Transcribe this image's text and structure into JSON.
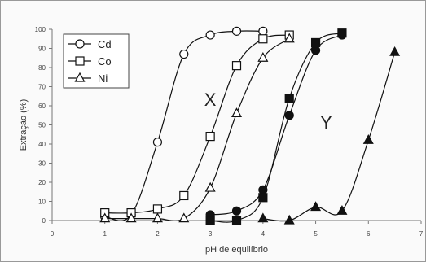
{
  "chart_data": {
    "type": "scatter",
    "xlabel": "pH de equilíbrio",
    "ylabel": "Extração (%)",
    "xlim": [
      0,
      7
    ],
    "ylim": [
      0,
      100
    ],
    "x_ticks": [
      0,
      1,
      2,
      3,
      4,
      5,
      6,
      7
    ],
    "y_ticks": [
      0,
      10,
      20,
      30,
      40,
      50,
      60,
      70,
      80,
      90,
      100
    ],
    "grid": false,
    "legend_position": "top-left",
    "annotations": [
      {
        "text": "X",
        "x": 3.0,
        "y": 60
      },
      {
        "text": "Y",
        "x": 5.2,
        "y": 48
      }
    ],
    "series": [
      {
        "name": "Cd",
        "group": "X",
        "marker": "circle",
        "fill": "open",
        "x": [
          1.0,
          1.5,
          2.0,
          2.5,
          3.0,
          3.5,
          4.0
        ],
        "y": [
          2,
          3,
          41,
          87,
          97,
          99,
          99
        ]
      },
      {
        "name": "Co",
        "group": "X",
        "marker": "square",
        "fill": "open",
        "x": [
          1.0,
          1.5,
          2.0,
          2.5,
          3.0,
          3.5,
          4.0,
          4.5
        ],
        "y": [
          4,
          4,
          6,
          13,
          44,
          81,
          95,
          97
        ]
      },
      {
        "name": "Ni",
        "group": "X",
        "marker": "triangle",
        "fill": "open",
        "x": [
          1.0,
          1.5,
          2.0,
          2.5,
          3.0,
          3.5,
          4.0,
          4.5
        ],
        "y": [
          1,
          1,
          1,
          1,
          17,
          56,
          85,
          95
        ]
      },
      {
        "group": "Y",
        "marker": "circle",
        "fill": "filled",
        "x": [
          3.0,
          3.5,
          4.0,
          4.5,
          5.0,
          5.5
        ],
        "y": [
          3,
          5,
          16,
          55,
          89,
          97
        ]
      },
      {
        "group": "Y",
        "marker": "square",
        "fill": "filled",
        "x": [
          3.0,
          3.5,
          4.0,
          4.5,
          5.0,
          5.5
        ],
        "y": [
          0,
          0,
          12,
          64,
          93,
          98
        ]
      },
      {
        "group": "Y",
        "marker": "triangle",
        "fill": "filled",
        "x": [
          4.0,
          4.5,
          5.0,
          5.5,
          6.0,
          6.5
        ],
        "y": [
          1,
          0,
          7,
          5,
          42,
          88
        ]
      }
    ]
  }
}
